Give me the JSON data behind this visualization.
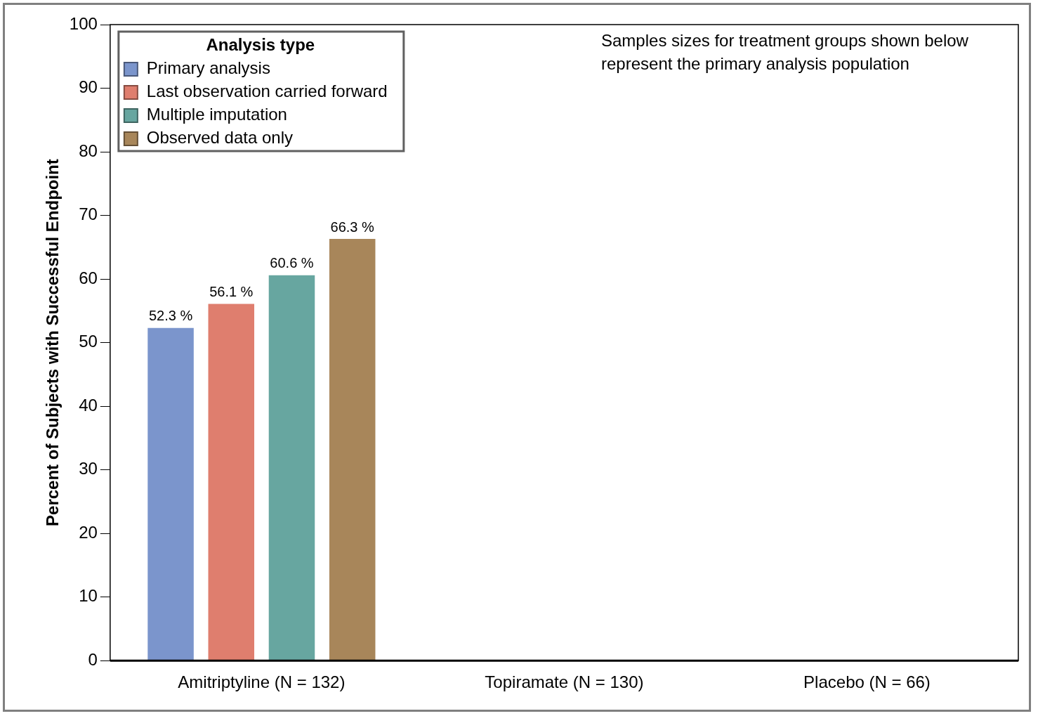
{
  "chart_data": {
    "type": "bar",
    "ylabel": "Percent of Subjects with Successful Endpoint",
    "legend_title": "Analysis type",
    "categories": [
      "Amitriptyline (N = 132)",
      "Topiramate (N = 130)",
      "Placebo (N = 66)"
    ],
    "series": [
      {
        "name": "Primary analysis",
        "color": "#7b95cc",
        "values": [
          52.3,
          null,
          null
        ],
        "value_labels": [
          "52.3 %",
          null,
          null
        ]
      },
      {
        "name": "Last observation carried forward",
        "color": "#df7e6e",
        "values": [
          56.1,
          null,
          null
        ],
        "value_labels": [
          "56.1 %",
          null,
          null
        ]
      },
      {
        "name": "Multiple imputation",
        "color": "#67a6a0",
        "values": [
          60.6,
          null,
          null
        ],
        "value_labels": [
          "60.6 %",
          null,
          null
        ]
      },
      {
        "name": "Observed data only",
        "color": "#a8865a",
        "values": [
          66.3,
          null,
          null
        ],
        "value_labels": [
          "66.3 %",
          null,
          null
        ]
      }
    ],
    "ylim": [
      0,
      100
    ],
    "yticks": [
      0,
      10,
      20,
      30,
      40,
      50,
      60,
      70,
      80,
      90,
      100
    ],
    "grid": false,
    "legend": "top left",
    "annotations": [
      "Samples sizes for treatment groups shown below represent the primary analysis population"
    ]
  }
}
